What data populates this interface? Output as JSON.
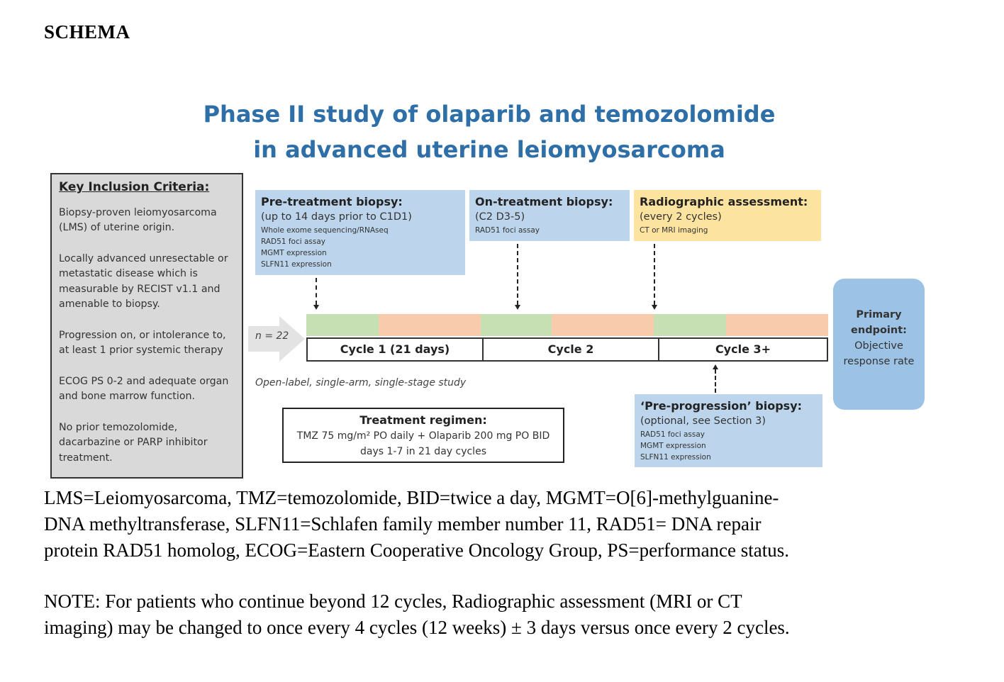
{
  "heading": "SCHEMA",
  "title": {
    "line1": "Phase II study of olaparib and temozolomide",
    "line2": "in advanced uterine leiomyosarcoma"
  },
  "criteria": {
    "heading": "Key Inclusion Criteria:",
    "items": [
      "Biopsy-proven leiomyosarcoma (LMS) of uterine origin.",
      "Locally advanced unresectable or metastatic disease which is measurable by RECIST v1.1 and amenable to biopsy.",
      "Progression on, or intolerance to, at least 1 prior systemic therapy",
      "ECOG PS 0-2 and adequate organ and bone marrow function.",
      "No prior temozolomide, dacarbazine or PARP inhibitor treatment."
    ]
  },
  "pre_treatment": {
    "header": "Pre-treatment biopsy:",
    "subheader": "(up to 14 days prior to C1D1)",
    "details": [
      "Whole exome sequencing/RNAseq",
      "RAD51 foci assay",
      "MGMT expression",
      "SLFN11 expression"
    ]
  },
  "on_treatment": {
    "header": "On-treatment biopsy:",
    "subheader": "(C2 D3-5)",
    "details": [
      "RAD51 foci assay"
    ]
  },
  "radiographic": {
    "header": "Radiographic assessment:",
    "subheader": "(every 2 cycles)",
    "details": [
      "CT or MRI imaging"
    ]
  },
  "pre_progression": {
    "header": "‘Pre-progression’ biopsy:",
    "subheader": "(optional, see Section 3)",
    "details": [
      "RAD51 foci assay",
      "MGMT expression",
      "SLFN11 expression"
    ]
  },
  "enrollment": "n = 22",
  "cycles": [
    "Cycle 1 (21 days)",
    "Cycle 2",
    "Cycle 3+"
  ],
  "study_design": "Open-label, single-arm, single-stage study",
  "regimen": {
    "header": "Treatment regimen:",
    "line1": "TMZ 75 mg/m² PO daily + Olaparib 200 mg PO BID",
    "line2": "days 1-7 in 21 day cycles"
  },
  "endpoint": {
    "header": "Primary endpoint:",
    "text": "Objective response rate"
  },
  "abbreviations": "LMS=Leiomyosarcoma, TMZ=temozolomide, BID=twice a day, MGMT=O[6]-methylguanine-\nDNA methyltransferase, SLFN11=Schlafen family member number 11, RAD51= DNA repair\nprotein RAD51 homolog, ECOG=Eastern Cooperative Oncology Group, PS=performance status.",
  "note": "NOTE: For patients who continue beyond 12 cycles, Radiographic assessment (MRI or CT\nimaging) may be changed to once every 4 cycles (12 weeks) ± 3 days versus once every 2 cycles.",
  "colors": {
    "title": "#2f6fa8",
    "blue_box": "#bcd5ec",
    "yellow_box": "#fde3a0",
    "treatment_phase": "#c6e0b4",
    "rest_phase": "#f8cbad",
    "endpoint_box": "#9cc3e5",
    "criteria_box": "#d9d9d9"
  }
}
